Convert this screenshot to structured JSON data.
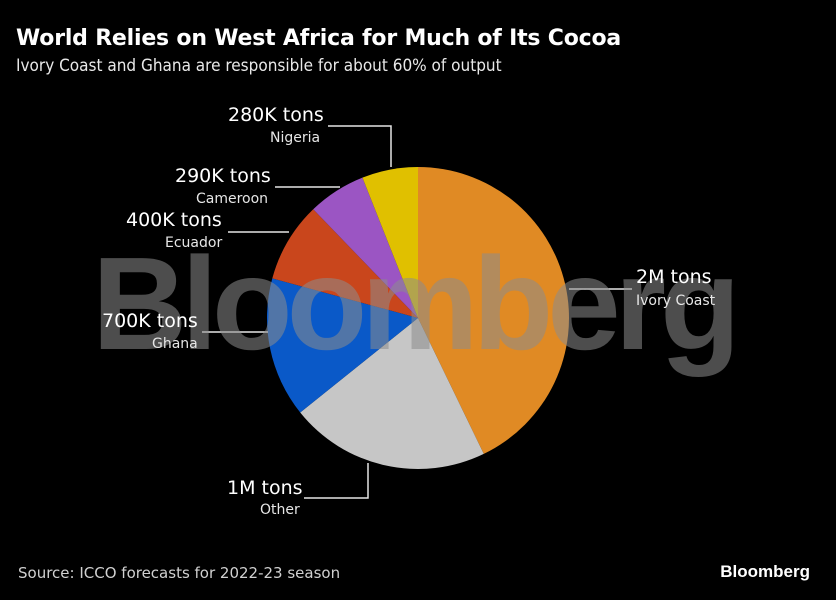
{
  "header": {
    "title": "World Relies on West Africa for Much of Its Cocoa",
    "subtitle": "Ivory Coast and Ghana are responsible for about 60% of output"
  },
  "footer": {
    "source": "Source: ICCO forecasts for 2022-23 season",
    "brand": "Bloomberg"
  },
  "watermark": "Bloomberg",
  "labels": {
    "nigeria_value": "280K tons",
    "nigeria_name": "Nigeria",
    "cameroon_value": "290K tons",
    "cameroon_name": "Cameroon",
    "ecuador_value": "400K tons",
    "ecuador_name": "Ecuador",
    "ghana_value": "700K tons",
    "ghana_name": "Ghana",
    "ivory_value": "2M tons",
    "ivory_name": "Ivory Coast",
    "other_value": "1M tons",
    "other_name": "Other"
  },
  "chart_data": {
    "type": "pie",
    "title": "World Relies on West Africa for Much of Its Cocoa",
    "subtitle": "Ivory Coast and Ghana are responsible for about 60% of output",
    "unit": "tons",
    "categories": [
      "Ivory Coast",
      "Other",
      "Ghana",
      "Ecuador",
      "Cameroon",
      "Nigeria"
    ],
    "values": [
      2000000,
      1000000,
      700000,
      400000,
      290000,
      280000
    ],
    "value_labels": [
      "2M tons",
      "1M tons",
      "700K tons",
      "400K tons",
      "290K tons",
      "280K tons"
    ],
    "colors": [
      "#e08a24",
      "#c6c6c6",
      "#0a59c8",
      "#c9461c",
      "#9b55c3",
      "#e0c000"
    ],
    "start_angle": "12 o'clock",
    "direction": "clockwise",
    "source": "Source: ICCO forecasts for 2022-23 season",
    "legend": "none (direct labels with leader lines)"
  }
}
